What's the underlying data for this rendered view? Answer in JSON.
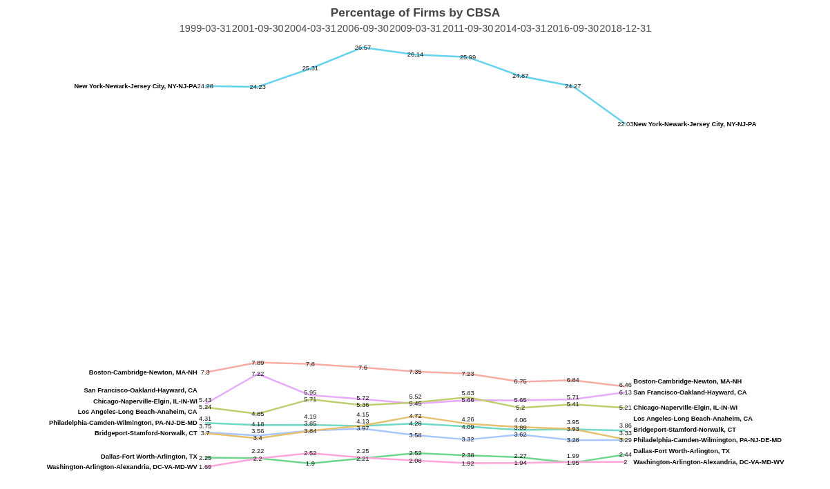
{
  "chart_data": {
    "type": "line",
    "title": "Percentage of Firms by CBSA",
    "categories": [
      "1999-03-31",
      "2001-09-30",
      "2004-03-31",
      "2006-09-30",
      "2009-03-31",
      "2011-09-30",
      "2014-03-31",
      "2016-09-30",
      "2018-12-31"
    ],
    "data_labels": true,
    "grid": false,
    "legend": false,
    "marker": "none",
    "line_style": "solid",
    "series": [
      {
        "name": "New York-Newark-Jersey City, NY-NJ-PA",
        "color": "#66d3ec",
        "values": [
          24.28,
          24.23,
          25.31,
          26.57,
          26.14,
          25.99,
          24.87,
          24.27,
          22.03
        ]
      },
      {
        "name": "Boston-Cambridge-Newton, MA-NH",
        "color": "#f7aca5",
        "values": [
          7.3,
          7.89,
          7.8,
          7.6,
          7.35,
          7.23,
          6.75,
          6.84,
          6.46
        ]
      },
      {
        "name": "San Francisco-Oakland-Hayward, CA",
        "color": "#e8aafb",
        "values": [
          5.43,
          7.22,
          5.95,
          5.72,
          5.45,
          5.66,
          5.65,
          5.71,
          6.13
        ]
      },
      {
        "name": "Chicago-Naperville-Elgin, IL-IN-WI",
        "color": "#c0cc6f",
        "values": [
          5.24,
          4.85,
          5.71,
          5.36,
          5.52,
          5.83,
          5.2,
          5.41,
          5.21
        ]
      },
      {
        "name": "Los Angeles-Long Beach-Anaheim, CA",
        "color": "#6fd9c5",
        "values": [
          4.31,
          4.18,
          4.19,
          4.13,
          4.28,
          4.09,
          3.89,
          3.93,
          3.86
        ]
      },
      {
        "name": "Philadelphia-Camden-Wilmington, PA-NJ-DE-MD",
        "color": "#a8c6ff",
        "values": [
          3.75,
          3.56,
          3.85,
          3.97,
          3.58,
          3.32,
          3.62,
          3.28,
          3.29
        ]
      },
      {
        "name": "Bridgeport-Stamford-Norwalk, CT",
        "color": "#e5c06f",
        "values": [
          3.7,
          3.4,
          3.84,
          4.15,
          4.72,
          4.26,
          4.06,
          3.95,
          3.33
        ]
      },
      {
        "name": "Dallas-Fort Worth-Arlington, TX",
        "color": "#6fd58f",
        "values": [
          2.25,
          2.22,
          1.9,
          2.21,
          2.52,
          2.38,
          2.27,
          1.95,
          2.44
        ]
      },
      {
        "name": "Washington-Arlington-Alexandria, DC-VA-MD-WV",
        "color": "#ffa5da",
        "values": [
          1.69,
          2.2,
          2.52,
          2.25,
          2.08,
          1.92,
          1.94,
          1.99,
          2
        ]
      }
    ]
  }
}
